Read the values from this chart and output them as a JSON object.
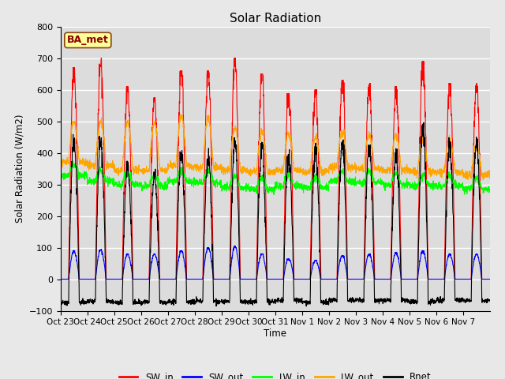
{
  "title": "Solar Radiation",
  "ylabel": "Solar Radiation (W/m2)",
  "xlabel": "Time",
  "ylim": [
    -100,
    800
  ],
  "yticks": [
    -100,
    0,
    100,
    200,
    300,
    400,
    500,
    600,
    700,
    800
  ],
  "xtick_labels": [
    "Oct 23",
    "Oct 24",
    "Oct 25",
    "Oct 26",
    "Oct 27",
    "Oct 28",
    "Oct 29",
    "Oct 30",
    "Oct 31",
    "Nov 1",
    "Nov 2",
    "Nov 3",
    "Nov 4",
    "Nov 5",
    "Nov 6",
    "Nov 7"
  ],
  "n_days": 16,
  "pts_per_day": 144,
  "annotation": "BA_met",
  "annotation_color": "#8B0000",
  "annotation_bg": "#FFFF99",
  "fig_bg_color": "#E8E8E8",
  "plot_bg": "#DCDCDC",
  "colors": {
    "SW_in": "#FF0000",
    "SW_out": "#0000FF",
    "LW_in": "#00FF00",
    "LW_out": "#FFA500",
    "Rnet": "#000000"
  },
  "sw_in_peaks": [
    670,
    700,
    610,
    575,
    660,
    660,
    700,
    650,
    590,
    600,
    630,
    620,
    610,
    690,
    620,
    620
  ],
  "sw_out_peaks": [
    90,
    95,
    80,
    80,
    90,
    100,
    105,
    80,
    65,
    60,
    75,
    80,
    85,
    90,
    80,
    80
  ],
  "lw_in_base": [
    330,
    310,
    300,
    295,
    310,
    305,
    290,
    285,
    295,
    290,
    310,
    305,
    300,
    295,
    295,
    285
  ],
  "lw_out_base": [
    370,
    360,
    345,
    345,
    360,
    355,
    345,
    340,
    345,
    340,
    355,
    350,
    345,
    340,
    340,
    330
  ],
  "lw_out_peak_add": [
    130,
    140,
    155,
    150,
    155,
    155,
    135,
    130,
    120,
    110,
    115,
    110,
    110,
    105,
    100,
    95
  ]
}
